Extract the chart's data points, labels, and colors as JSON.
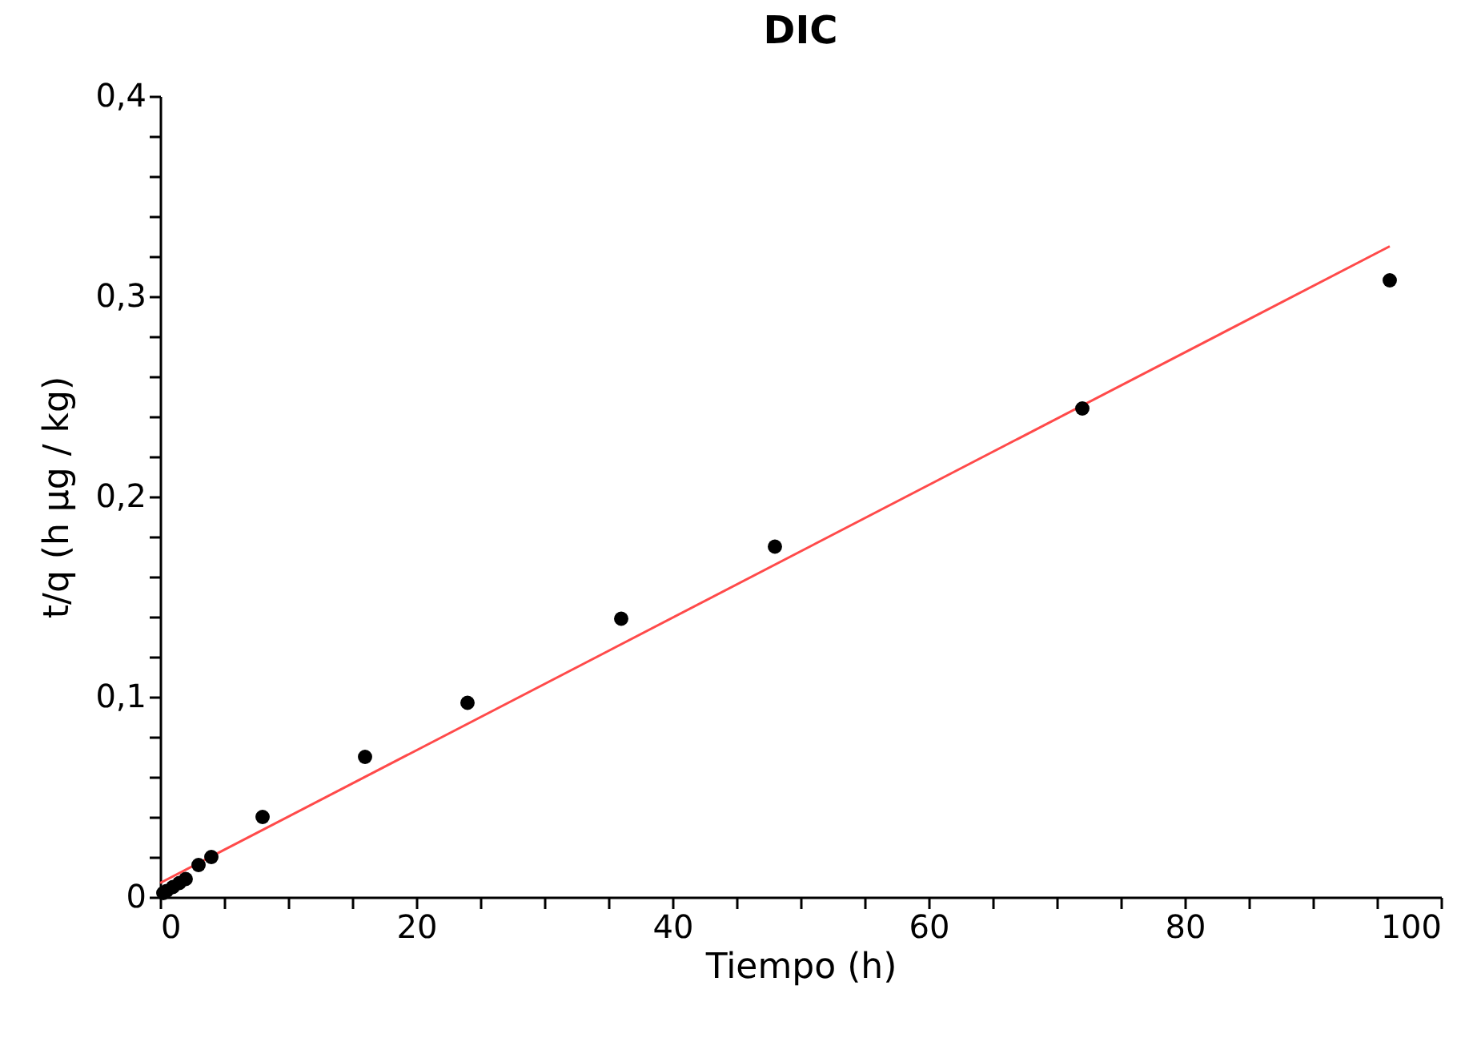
{
  "chart_data": {
    "type": "scatter",
    "title": "DIC",
    "xlabel": "Tiempo (h)",
    "ylabel": "t/q (h µg / kg)",
    "xlim": [
      0,
      100
    ],
    "ylim": [
      0,
      0.4
    ],
    "xticks": [
      0,
      {
        "value": 5,
        "label": null
      },
      {
        "value": 10,
        "label": null
      },
      {
        "value": 15,
        "label": null
      },
      20,
      {
        "value": 25,
        "label": null
      },
      {
        "value": 30,
        "label": null
      },
      {
        "value": 35,
        "label": null
      },
      40,
      {
        "value": 45,
        "label": null
      },
      {
        "value": 50,
        "label": null
      },
      {
        "value": 55,
        "label": null
      },
      60,
      {
        "value": 65,
        "label": null
      },
      {
        "value": 70,
        "label": null
      },
      {
        "value": 75,
        "label": null
      },
      80,
      {
        "value": 85,
        "label": null
      },
      {
        "value": 90,
        "label": null
      },
      {
        "value": 95,
        "label": null
      },
      100
    ],
    "yticks": [
      {
        "value": 0,
        "label": "0"
      },
      {
        "value": 0.02,
        "label": null
      },
      {
        "value": 0.04,
        "label": null
      },
      {
        "value": 0.06,
        "label": null
      },
      {
        "value": 0.08,
        "label": null
      },
      {
        "value": 0.1,
        "label": "0,1"
      },
      {
        "value": 0.12,
        "label": null
      },
      {
        "value": 0.14,
        "label": null
      },
      {
        "value": 0.16,
        "label": null
      },
      {
        "value": 0.18,
        "label": null
      },
      {
        "value": 0.2,
        "label": "0,2"
      },
      {
        "value": 0.22,
        "label": null
      },
      {
        "value": 0.24,
        "label": null
      },
      {
        "value": 0.26,
        "label": null
      },
      {
        "value": 0.28,
        "label": null
      },
      {
        "value": 0.3,
        "label": "0,3"
      },
      {
        "value": 0.32,
        "label": null
      },
      {
        "value": 0.34,
        "label": null
      },
      {
        "value": 0.36,
        "label": null
      },
      {
        "value": 0.38,
        "label": null
      },
      {
        "value": 0.4,
        "label": "0,4"
      }
    ],
    "grid": false,
    "series": [
      {
        "type": "line",
        "color": "#ff4a4a",
        "x": [
          0,
          96
        ],
        "values": [
          0.007,
          0.325
        ]
      },
      {
        "color": "#000000",
        "marker": "circle",
        "x": [
          0.25,
          0.5,
          1,
          1.5,
          2,
          3,
          4,
          8,
          16,
          24,
          36,
          48,
          72,
          96
        ],
        "values": [
          0.002,
          0.003,
          0.005,
          0.007,
          0.009,
          0.016,
          0.02,
          0.04,
          0.07,
          0.097,
          0.139,
          0.175,
          0.244,
          0.308
        ]
      }
    ]
  }
}
